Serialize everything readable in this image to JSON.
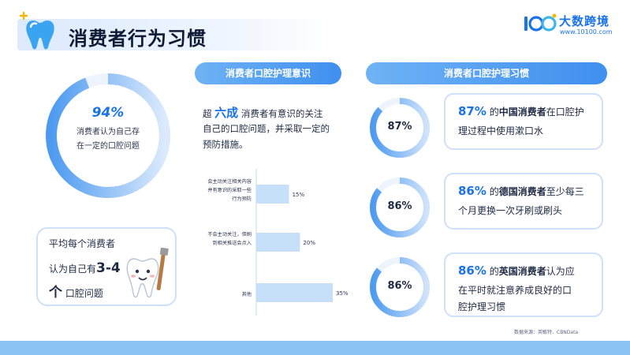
{
  "header": {
    "title": "消费者行为习惯",
    "brand_name": "大数跨境",
    "brand_url": "www.10100.com"
  },
  "left": {
    "donut": {
      "value": 94,
      "label": "94%",
      "line1": "消费者认为自己存",
      "line2": "在一定的口腔问题"
    },
    "card": {
      "line1": "平均每个消费者",
      "line2_pre": "认为自己有",
      "line2_strong": "3-4",
      "line3_strong": "个",
      "line3_post": "口腔问题"
    }
  },
  "middle": {
    "pill": "消费者口腔护理意识",
    "para": {
      "pre": "超",
      "big": "六成",
      "line1_post": "消费者有意识的关注",
      "line2": "自己的口腔问题，并采取一定的",
      "line3": "预防措施。"
    }
  },
  "chart_data": {
    "type": "bar",
    "orientation": "horizontal",
    "categories": [
      "会主动关注相关内容并有意识的采取一些行为预防",
      "不会主动关注，但刷到相关推送会点入",
      "其他"
    ],
    "category_lines": [
      [
        "会主动关注相关内容",
        "并有意识的采取一些",
        "行为预防"
      ],
      [
        "不会主动关注，但刷",
        "到相关推送会点入"
      ],
      [
        "其他"
      ]
    ],
    "values": [
      15,
      20,
      35
    ],
    "value_labels": [
      "15%",
      "20%",
      "35%"
    ],
    "xlim": [
      0,
      35
    ],
    "title": "",
    "xlabel": "",
    "ylabel": "",
    "bar_color": "#c7e0fa"
  },
  "right": {
    "pill": "消费者口腔护理习惯",
    "items": [
      {
        "value": 87,
        "label": "87%",
        "line1_pct": "87%",
        "line1_mid": "的",
        "line1_strong": "中国消费者",
        "line1_post": "在口腔护",
        "line2": "理过程中使用漱口水"
      },
      {
        "value": 86,
        "label": "86%",
        "line1_pct": "86%",
        "line1_mid": "的",
        "line1_strong": "德国消费者",
        "line1_post": "至少每三",
        "line2": "个月更换一次牙刷或刷头"
      },
      {
        "value": 86,
        "label": "86%",
        "line1_pct": "86%",
        "line1_mid": "的",
        "line1_strong": "英国消费者",
        "line1_post": "认为应",
        "line2": "在平时就注意养成良好的口",
        "line3": "腔护理习惯"
      }
    ]
  },
  "footer": {
    "source": "数据来源：英敏特、CBNData"
  },
  "colors": {
    "accent": "#1a73e8",
    "light": "#cfe1f8",
    "ring": "#7eb8f3",
    "band": "#8ec3f6"
  }
}
